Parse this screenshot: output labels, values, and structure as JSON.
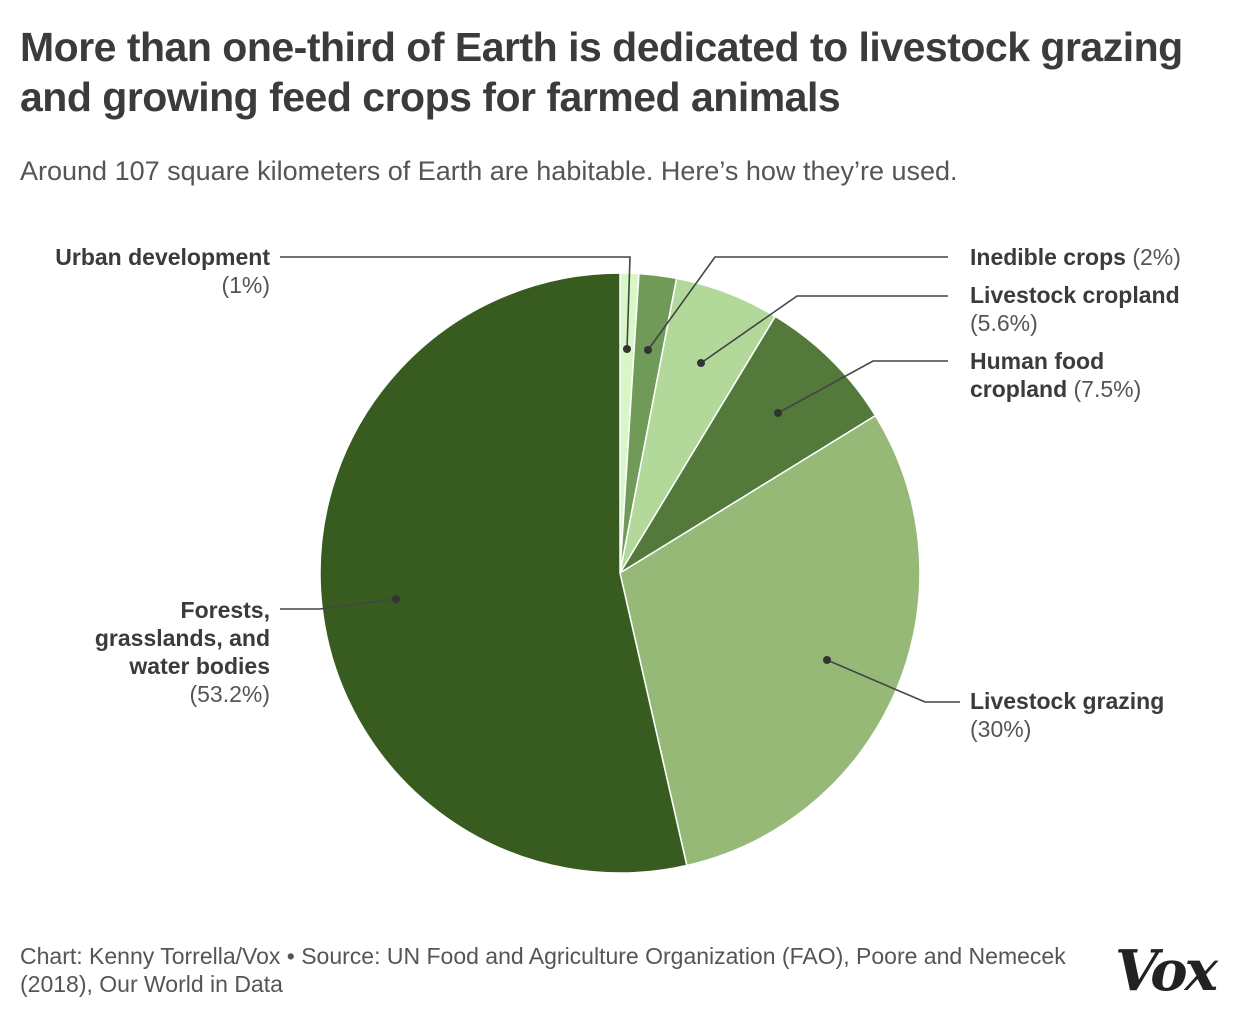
{
  "title": "More than one-third of Earth is dedicated to livestock grazing and growing feed crops for farmed animals",
  "subtitle": "Around 107 square kilometers of Earth are habitable. Here’s how they’re used.",
  "chart_data": {
    "type": "pie",
    "start": "top, clockwise",
    "slices": [
      {
        "label": "Urban development",
        "pct_label": "(1%)",
        "value": 1,
        "color": "#d9f7c4"
      },
      {
        "label": "Inedible crops",
        "pct_label": "(2%)",
        "value": 2,
        "color": "#6f9a58"
      },
      {
        "label": "Livestock cropland",
        "pct_label": "(5.6%)",
        "value": 5.6,
        "color": "#b3d99a"
      },
      {
        "label": "Human food cropland",
        "pct_label": "(7.5%)",
        "value": 7.5,
        "color": "#537a3a"
      },
      {
        "label": "Livestock grazing",
        "pct_label": "(30%)",
        "value": 30,
        "color": "#96b978"
      },
      {
        "label": "Forests, grasslands, and water bodies",
        "pct_label": "(53.2%)",
        "value": 53.2,
        "color": "#385c1f"
      }
    ]
  },
  "footer": "Chart: Kenny Torrella/Vox • Source: UN Food and Agriculture Organization (FAO), Poore and Nemecek (2018), Our World in Data",
  "logo": "Vox"
}
